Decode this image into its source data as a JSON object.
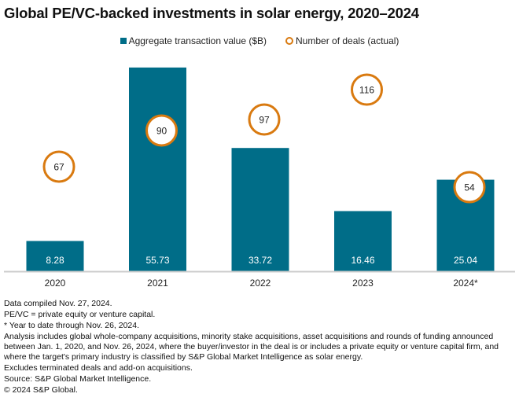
{
  "title": "Global PE/VC-backed investments in solar energy, 2020–2024",
  "colors": {
    "bar": "#006d88",
    "circle": "#d97a10",
    "axis": "#cccccc"
  },
  "chart_data": {
    "type": "bar",
    "title": "Global PE/VC-backed investments in solar energy, 2020–2024",
    "categories": [
      "2020",
      "2021",
      "2022",
      "2023",
      "2024*"
    ],
    "series": [
      {
        "name": "Aggregate transaction value ($B)",
        "type": "bar",
        "values": [
          8.28,
          55.73,
          33.72,
          16.46,
          25.04
        ],
        "labels": [
          "8.28",
          "55.73",
          "33.72",
          "16.46",
          "25.04"
        ]
      },
      {
        "name": "Number of deals (actual)",
        "type": "scatter",
        "marker": "circle",
        "values": [
          67,
          90,
          97,
          116,
          54
        ],
        "labels": [
          "67",
          "90",
          "97",
          "116",
          "54"
        ]
      }
    ],
    "xlabel": "",
    "ylabel": "",
    "grid": false,
    "legend": "top-center"
  },
  "legend": [
    {
      "label": "Aggregate transaction value ($B)",
      "marker": "square"
    },
    {
      "label": "Number of deals (actual)",
      "marker": "circle"
    }
  ],
  "notes": [
    "Data compiled Nov. 27, 2024.",
    "PE/VC = private equity or venture capital.",
    "* Year to date through Nov. 26, 2024.",
    "Analysis includes global whole-company acquisitions, minority stake acquisitions, asset acquisitions and rounds of funding announced between Jan. 1, 2020, and Nov. 26, 2024, where the buyer/investor in the deal is or includes a private equity or venture capital firm, and where the target's primary industry is classified by S&P Global Market Intelligence as solar energy.",
    "Excludes terminated deals and add-on acquisitions.",
    "Source: S&P Global Market Intelligence.",
    "© 2024 S&P Global."
  ]
}
